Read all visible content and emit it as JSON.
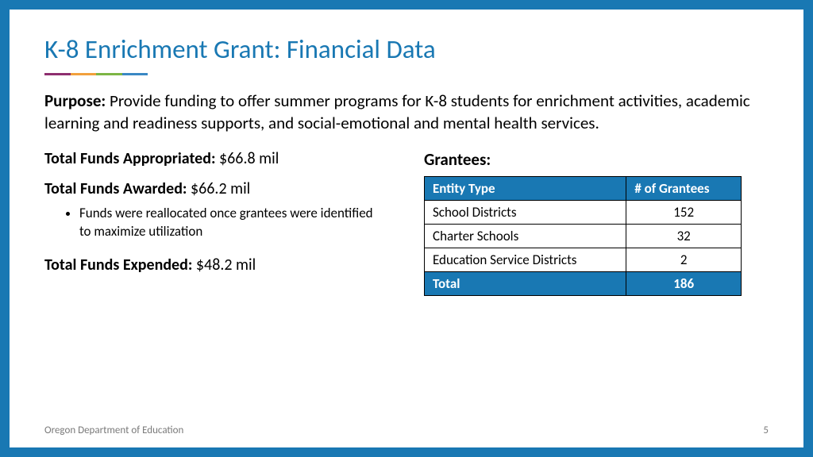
{
  "colors": {
    "frame": "#1978b3",
    "title": "#1978b3",
    "rule_segments": [
      "#8e2e6f",
      "#f2a03c",
      "#7db544",
      "#3a88c4"
    ],
    "table_header_bg": "#1978b3",
    "table_header_text": "#ffffff",
    "table_border": "#000000",
    "table_total_bg": "#1978b3",
    "footer_text": "#7a7a7a"
  },
  "title": "K-8 Enrichment Grant: Financial Data",
  "purpose": {
    "label": "Purpose:",
    "text": "Provide funding to offer summer programs for K-8 students for enrichment activities, academic learning and readiness supports, and social-emotional and mental health services."
  },
  "funds": {
    "appropriated": {
      "label": "Total Funds Appropriated:",
      "value": "$66.8 mil"
    },
    "awarded": {
      "label": "Total Funds Awarded:",
      "value": "$66.2 mil",
      "note": "Funds were reallocated once grantees were identified to maximize utilization"
    },
    "expended": {
      "label": "Total Funds Expended:",
      "value": "$48.2 mil"
    }
  },
  "grantees": {
    "heading": "Grantees:",
    "columns": [
      "Entity Type",
      "# of Grantees"
    ],
    "rows": [
      {
        "entity": "School Districts",
        "count": "152"
      },
      {
        "entity": "Charter Schools",
        "count": "32"
      },
      {
        "entity": "Education Service Districts",
        "count": "2"
      }
    ],
    "total": {
      "label": "Total",
      "count": "186"
    }
  },
  "footer": {
    "org": "Oregon Department of Education",
    "page": "5"
  }
}
